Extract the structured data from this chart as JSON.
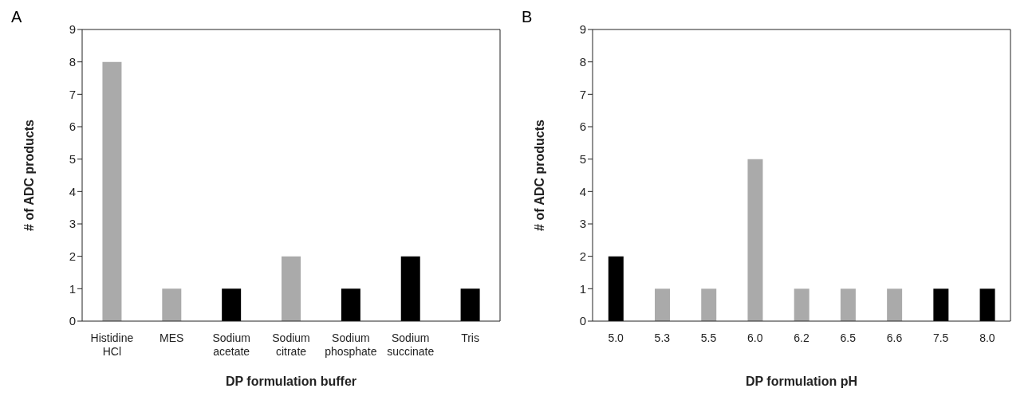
{
  "chart_data": [
    {
      "type": "bar",
      "title": "A",
      "xlabel": "DP formulation buffer",
      "ylabel": "# of ADC products",
      "categories": [
        "Histidine HCl",
        "MES",
        "Sodium acetate",
        "Sodium citrate",
        "Sodium phosphate",
        "Sodium succinate",
        "Tris"
      ],
      "values": [
        8,
        1,
        1,
        2,
        1,
        2,
        1
      ],
      "colors": [
        "#aaaaaa",
        "#aaaaaa",
        "#000000",
        "#aaaaaa",
        "#000000",
        "#000000",
        "#000000"
      ],
      "ylim": [
        0,
        9
      ],
      "yticks": [
        0,
        1,
        2,
        3,
        4,
        5,
        6,
        7,
        8,
        9
      ],
      "grid": false,
      "legend": false
    },
    {
      "type": "bar",
      "title": "B",
      "xlabel": "DP formulation pH",
      "ylabel": "# of ADC products",
      "categories": [
        "5.0",
        "5.3",
        "5.5",
        "6.0",
        "6.2",
        "6.5",
        "6.6",
        "7.5",
        "8.0"
      ],
      "values": [
        2,
        1,
        1,
        5,
        1,
        1,
        1,
        1,
        1
      ],
      "colors": [
        "#000000",
        "#aaaaaa",
        "#aaaaaa",
        "#aaaaaa",
        "#aaaaaa",
        "#aaaaaa",
        "#aaaaaa",
        "#000000",
        "#000000"
      ],
      "ylim": [
        0,
        9
      ],
      "yticks": [
        0,
        1,
        2,
        3,
        4,
        5,
        6,
        7,
        8,
        9
      ],
      "grid": false,
      "legend": false
    }
  ]
}
